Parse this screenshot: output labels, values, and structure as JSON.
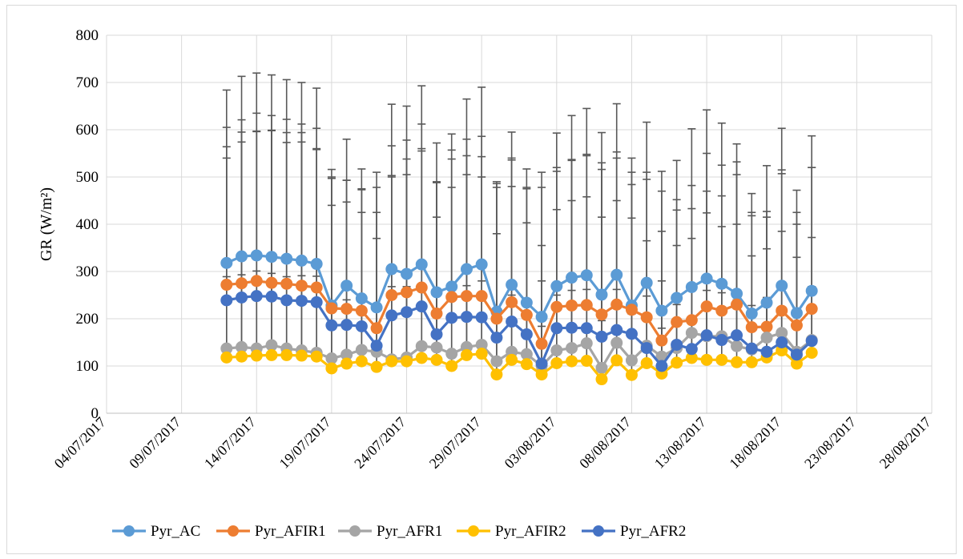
{
  "chart_data": {
    "type": "line",
    "ylabel": "GR (W/m²)",
    "xlabel": "",
    "title": "",
    "ylim": [
      0,
      800
    ],
    "yticks": [
      0,
      100,
      200,
      300,
      400,
      500,
      600,
      700,
      800
    ],
    "xlim": [
      "04/07/2017",
      "28/08/2017"
    ],
    "xticks": [
      "04/07/2017",
      "09/07/2017",
      "14/07/2017",
      "19/07/2017",
      "24/07/2017",
      "29/07/2017",
      "03/08/2017",
      "08/08/2017",
      "13/08/2017",
      "18/08/2017",
      "23/08/2017",
      "28/08/2017"
    ],
    "grid": true,
    "legend_position": "bottom",
    "dates": [
      "12/07/2017",
      "13/07/2017",
      "14/07/2017",
      "15/07/2017",
      "16/07/2017",
      "17/07/2017",
      "18/07/2017",
      "19/07/2017",
      "20/07/2017",
      "21/07/2017",
      "22/07/2017",
      "23/07/2017",
      "24/07/2017",
      "25/07/2017",
      "26/07/2017",
      "27/07/2017",
      "28/07/2017",
      "29/07/2017",
      "30/07/2017",
      "31/07/2017",
      "01/08/2017",
      "02/08/2017",
      "03/08/2017",
      "04/08/2017",
      "05/08/2017",
      "06/08/2017",
      "07/08/2017",
      "08/08/2017",
      "09/08/2017",
      "10/08/2017",
      "11/08/2017",
      "12/08/2017",
      "13/08/2017",
      "14/08/2017",
      "15/08/2017",
      "16/08/2017",
      "17/08/2017",
      "18/08/2017",
      "19/08/2017",
      "20/08/2017"
    ],
    "series": [
      {
        "name": "Pyr_AC",
        "color": "#5b9bd5",
        "values": [
          318,
          332,
          334,
          331,
          327,
          323,
          316,
          228,
          270,
          243,
          224,
          305,
          295,
          315,
          256,
          268,
          305,
          315,
          215,
          272,
          234,
          204,
          269,
          287,
          292,
          251,
          293,
          228,
          276,
          217,
          244,
          267,
          285,
          274,
          253,
          211,
          234,
          270,
          212,
          259
        ],
        "error_upper": [
          684,
          713,
          720,
          716,
          706,
          700,
          688,
          516,
          580,
          517,
          510,
          654,
          650,
          693,
          572,
          591,
          665,
          690,
          490,
          595,
          517,
          478,
          593,
          630,
          645,
          594,
          655,
          540,
          616,
          512,
          535,
          602,
          642,
          614,
          570,
          465,
          524,
          603,
          472,
          587
        ]
      },
      {
        "name": "Pyr_AFIR1",
        "color": "#ed7d31",
        "values": [
          272,
          275,
          280,
          276,
          274,
          270,
          266,
          222,
          221,
          217,
          180,
          250,
          256,
          266,
          211,
          246,
          248,
          248,
          200,
          235,
          208,
          147,
          225,
          228,
          229,
          209,
          230,
          219,
          203,
          154,
          193,
          197,
          226,
          217,
          230,
          182,
          183,
          217,
          186,
          221
        ],
        "error_upper": [
          605,
          621,
          635,
          630,
          622,
          612,
          603,
          500,
          493,
          475,
          425,
          566,
          578,
          612,
          490,
          557,
          580,
          586,
          478,
          536,
          478,
          355,
          520,
          537,
          545,
          516,
          553,
          484,
          495,
          385,
          452,
          482,
          550,
          525,
          532,
          418,
          427,
          515,
          425,
          520
        ]
      },
      {
        "name": "Pyr_AFR1",
        "color": "#a5a5a5",
        "values": [
          137,
          140,
          137,
          144,
          137,
          133,
          128,
          116,
          124,
          134,
          130,
          114,
          118,
          142,
          139,
          126,
          140,
          145,
          110,
          130,
          125,
          100,
          133,
          138,
          148,
          96,
          149,
          112,
          143,
          120,
          138,
          170,
          163,
          163,
          142,
          135,
          160,
          170,
          130,
          155
        ],
        "error_upper": [
          564,
          595,
          596,
          599,
          594,
          594,
          558,
          497,
          493,
          473,
          478,
          503,
          538,
          560,
          488,
          538,
          545,
          543,
          486,
          540,
          475,
          510,
          512,
          535,
          548,
          530,
          540,
          510,
          510,
          470,
          430,
          433,
          470,
          460,
          505,
          425,
          415,
          507,
          400,
          520
        ]
      },
      {
        "name": "Pyr_AFIR2",
        "color": "#ffc000",
        "values": [
          118,
          120,
          122,
          123,
          123,
          122,
          120,
          95,
          105,
          110,
          98,
          110,
          110,
          117,
          113,
          100,
          123,
          126,
          82,
          113,
          104,
          82,
          106,
          110,
          111,
          72,
          112,
          81,
          106,
          84,
          107,
          117,
          113,
          113,
          108,
          108,
          118,
          133,
          105,
          128
        ],
        "error_upper": [
          289,
          293,
          301,
          296,
          289,
          291,
          290,
          220,
          240,
          238,
          232,
          268,
          268,
          270,
          248,
          252,
          270,
          280,
          196,
          250,
          240,
          184,
          250,
          260,
          262,
          196,
          262,
          210,
          248,
          180,
          230,
          260,
          260,
          255,
          240,
          228,
          245,
          265,
          220,
          268
        ]
      },
      {
        "name": "Pyr_AFR2",
        "color": "#4472c4",
        "values": [
          239,
          245,
          248,
          247,
          239,
          238,
          235,
          186,
          187,
          184,
          143,
          207,
          214,
          226,
          167,
          202,
          204,
          203,
          160,
          194,
          167,
          105,
          180,
          181,
          180,
          162,
          176,
          168,
          138,
          100,
          145,
          136,
          165,
          155,
          165,
          137,
          130,
          150,
          124,
          153
        ],
        "error_upper": [
          540,
          574,
          597,
          598,
          573,
          574,
          560,
          440,
          447,
          425,
          370,
          500,
          505,
          555,
          415,
          478,
          505,
          500,
          380,
          480,
          403,
          280,
          431,
          450,
          458,
          415,
          450,
          413,
          365,
          280,
          355,
          370,
          424,
          395,
          400,
          333,
          348,
          385,
          330,
          372
        ]
      }
    ]
  }
}
